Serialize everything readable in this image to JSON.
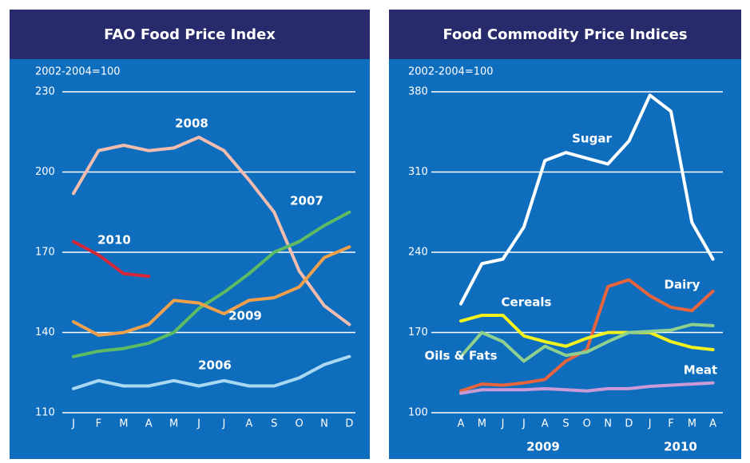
{
  "chart_data": [
    {
      "type": "line",
      "title": "FAO Food Price Index",
      "subtitle": "2002-2004=100",
      "categories": [
        "J",
        "F",
        "M",
        "A",
        "M",
        "J",
        "J",
        "A",
        "S",
        "O",
        "N",
        "D"
      ],
      "ylim": [
        110,
        230
      ],
      "yticks": [
        110,
        140,
        170,
        200,
        230
      ],
      "grid": true,
      "series": [
        {
          "name": "2008",
          "color": "#f2bcae",
          "values": [
            192,
            208,
            210,
            208,
            209,
            213,
            208,
            197,
            185,
            163,
            150,
            143
          ]
        },
        {
          "name": "2007",
          "color": "#5dbb63",
          "values": [
            131,
            133,
            134,
            136,
            140,
            149,
            155,
            162,
            170,
            174,
            180,
            185
          ]
        },
        {
          "name": "2009",
          "color": "#f0a04b",
          "values": [
            144,
            139,
            140,
            143,
            152,
            151,
            147,
            152,
            153,
            157,
            168,
            172
          ]
        },
        {
          "name": "2010",
          "color": "#d5283a",
          "values": [
            174,
            169,
            162,
            161,
            null,
            null,
            null,
            null,
            null,
            null,
            null,
            null
          ]
        },
        {
          "name": "2006",
          "color": "#a9d8f2",
          "values": [
            119,
            122,
            120,
            120,
            122,
            120,
            122,
            120,
            120,
            123,
            128,
            131
          ]
        }
      ]
    },
    {
      "type": "line",
      "title": "Food Commodity Price Indices",
      "subtitle": "2002-2004=100",
      "categories": [
        "A",
        "M",
        "J",
        "J",
        "A",
        "S",
        "O",
        "N",
        "D",
        "J",
        "F",
        "M",
        "A"
      ],
      "year_labels": [
        "2009",
        "2010"
      ],
      "ylim": [
        100,
        380
      ],
      "yticks": [
        100,
        170,
        240,
        310,
        380
      ],
      "grid": true,
      "series": [
        {
          "name": "Sugar",
          "color": "#ffffff",
          "values": [
            195,
            230,
            234,
            262,
            320,
            327,
            322,
            317,
            337,
            377,
            363,
            266,
            234
          ]
        },
        {
          "name": "Dairy",
          "color": "#e8643c",
          "values": [
            119,
            125,
            124,
            126,
            129,
            145,
            155,
            210,
            216,
            202,
            192,
            189,
            206
          ]
        },
        {
          "name": "Cereals",
          "color": "#f2f21e",
          "values": [
            180,
            185,
            185,
            167,
            162,
            158,
            165,
            170,
            170,
            170,
            162,
            157,
            155
          ]
        },
        {
          "name": "Oils & Fats",
          "color": "#8fd08f",
          "values": [
            149,
            170,
            162,
            145,
            158,
            150,
            153,
            162,
            170,
            171,
            172,
            177,
            176
          ]
        },
        {
          "name": "Meat",
          "color": "#c99ad6",
          "values": [
            117,
            120,
            120,
            120,
            121,
            120,
            119,
            121,
            121,
            123,
            124,
            125,
            126
          ]
        }
      ]
    }
  ]
}
